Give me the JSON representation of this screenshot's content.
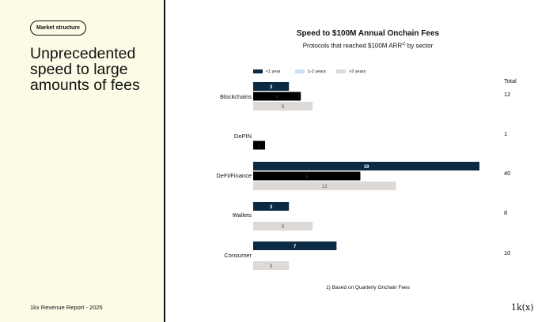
{
  "panel": {
    "tag": "Market structure",
    "headline": "Unprecedented speed to large amounts of fees",
    "footer": "1kx Revenue Report  - 2025",
    "logo": "1k(x)"
  },
  "colors": {
    "lt1": "#0b2a44",
    "y1to2": "#c9e0f7",
    "gt2": "#dcd9d6",
    "panel_bg": "#fbfbe6"
  },
  "chart_data": {
    "type": "bar",
    "orientation": "horizontal",
    "title": "Speed to $100M Annual Onchain Fees",
    "subtitle_main": "Protocols that reached $100M ARR",
    "subtitle_sup": "1)",
    "subtitle_tail": " by sector",
    "legend_placement": "top",
    "categories": [
      "Blockchains",
      "DePIN",
      "DeFi/Finance",
      "Wallets",
      "Consumer"
    ],
    "series": [
      {
        "name": "<1 year",
        "values": [
          3,
          null,
          19,
          3,
          7
        ]
      },
      {
        "name": "1-2 years",
        "values": [
          4,
          1,
          9,
          null,
          null
        ]
      },
      {
        "name": ">2 years",
        "values": [
          5,
          null,
          12,
          5,
          3
        ]
      }
    ],
    "totals_label": "Total",
    "totals": [
      12,
      1,
      40,
      8,
      10
    ],
    "grid": false,
    "footnote": "1) Based on Quarterly Onchain Fees"
  }
}
